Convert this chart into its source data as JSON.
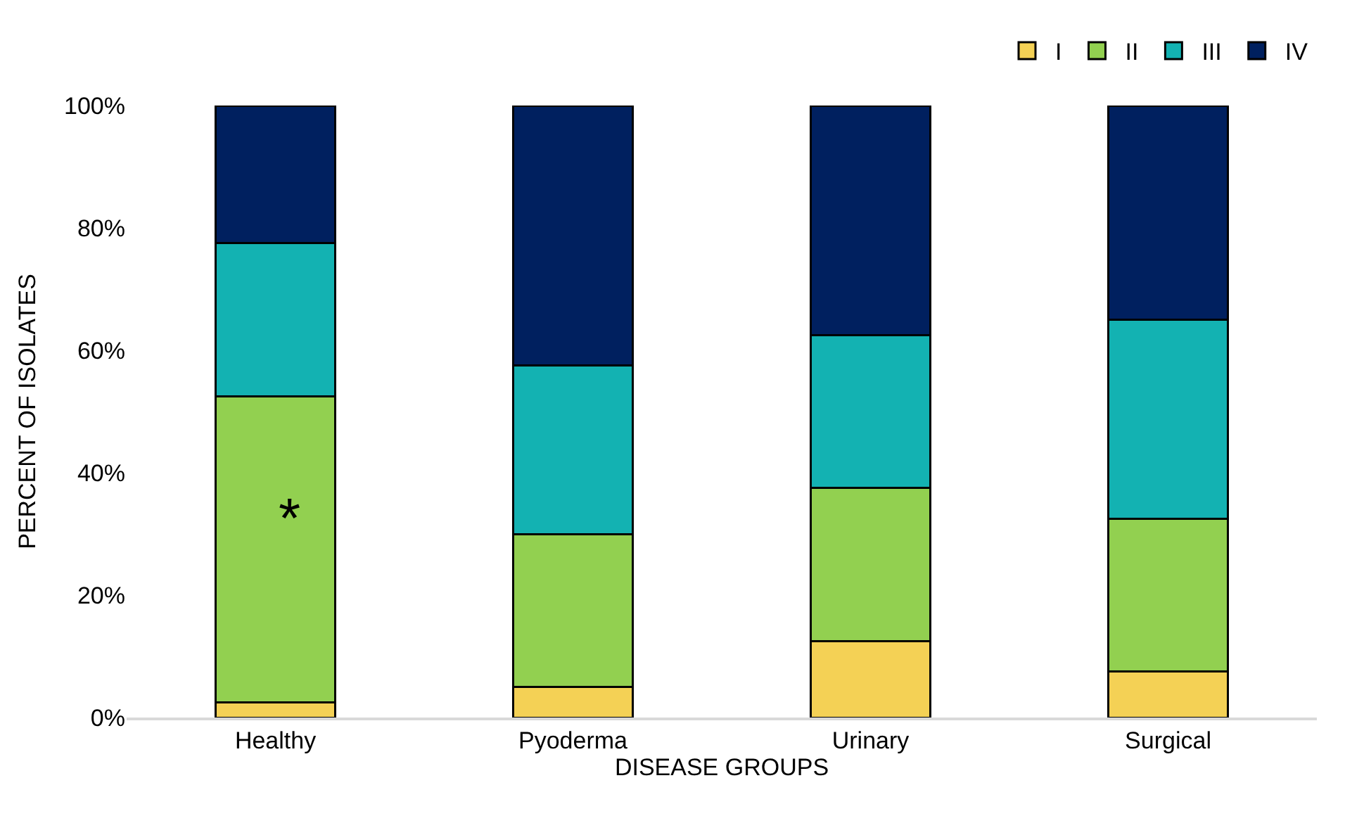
{
  "chart_data": {
    "type": "bar",
    "stacked": true,
    "xlabel": "DISEASE GROUPS",
    "ylabel": "PERCENT OF ISOLATES",
    "categories": [
      "Healthy",
      "Pyoderma",
      "Urinary",
      "Surgical"
    ],
    "series": [
      {
        "name": "I",
        "color": "#f4d155",
        "values": [
          2.5,
          5,
          12.5,
          7.5
        ]
      },
      {
        "name": "II",
        "color": "#92d050",
        "values": [
          50,
          25,
          25,
          25
        ]
      },
      {
        "name": "III",
        "color": "#13b2b2",
        "values": [
          25,
          27.5,
          25,
          32.5
        ]
      },
      {
        "name": "IV",
        "color": "#00205f",
        "values": [
          22.5,
          42.5,
          37.5,
          35
        ]
      }
    ],
    "ylim": [
      0,
      100
    ],
    "yticks": [
      {
        "value": 0,
        "label": "0%"
      },
      {
        "value": 20,
        "label": "20%"
      },
      {
        "value": 40,
        "label": "40%"
      },
      {
        "value": 60,
        "label": "60%"
      },
      {
        "value": 80,
        "label": "80%"
      },
      {
        "value": 100,
        "label": "100%"
      }
    ],
    "annotations": [
      "*"
    ],
    "legend": "top right"
  }
}
